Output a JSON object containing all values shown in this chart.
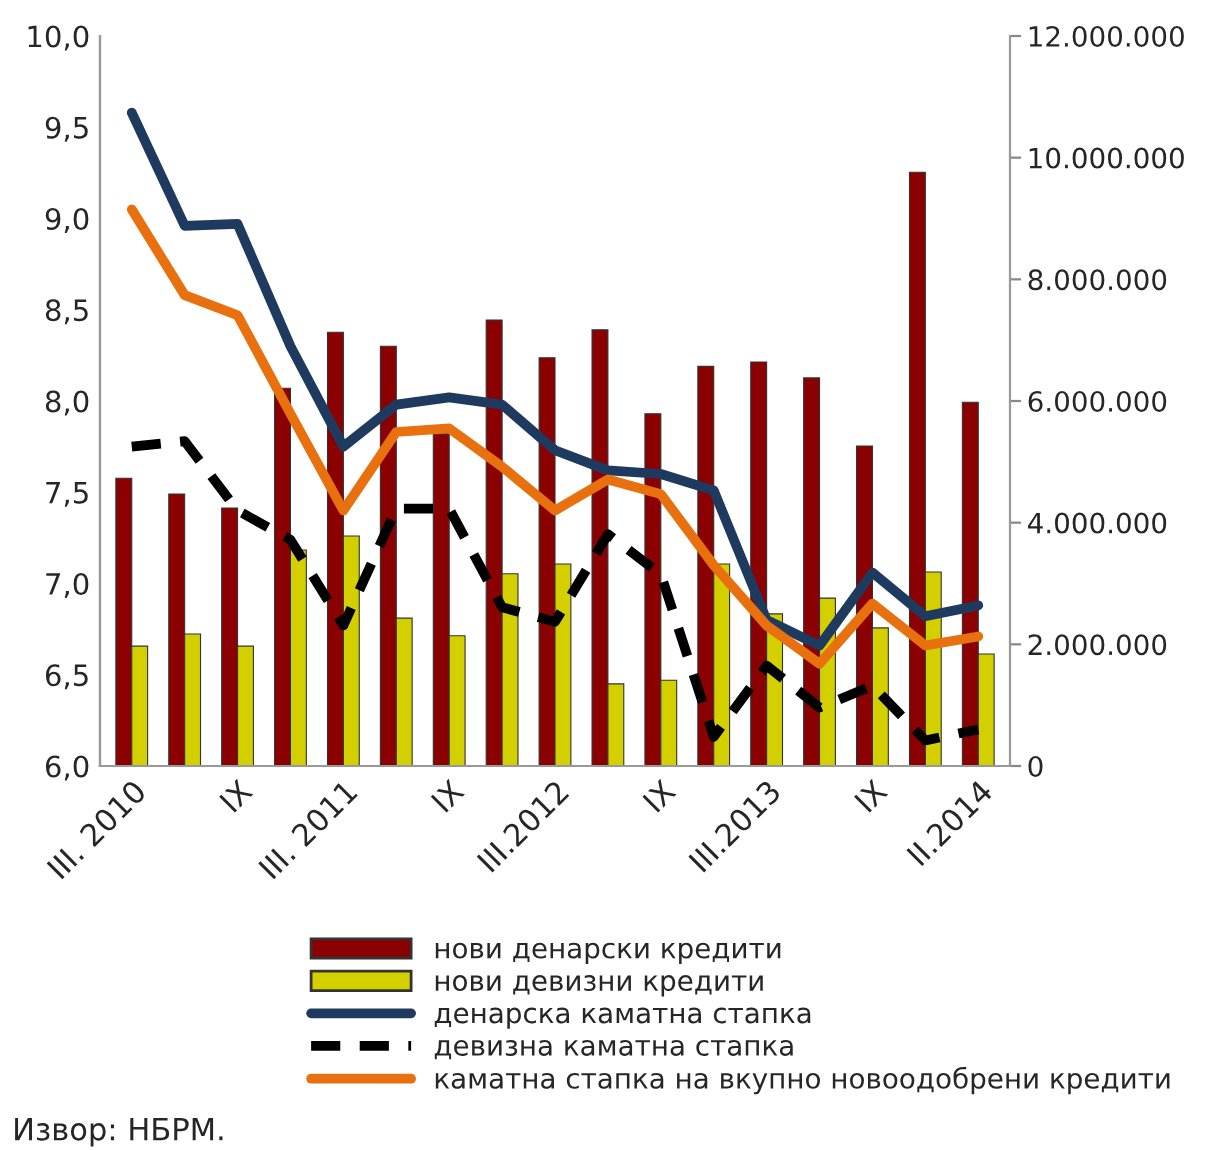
{
  "chart_data": {
    "type": "bar",
    "categories": [
      "III. 2010",
      null,
      "IX",
      null,
      "III. 2011",
      null,
      "IX",
      null,
      "III.2012",
      null,
      "IX",
      null,
      "III.2013",
      null,
      "IX",
      null,
      "II.2014"
    ],
    "series": [
      {
        "name": "нови денарски кредити",
        "axis": "y2",
        "color": "#8b0000",
        "values": [
          4730000,
          4470000,
          4240000,
          6210000,
          7130000,
          6900000,
          5460000,
          7330000,
          6710000,
          7170000,
          5790000,
          6570000,
          6640000,
          6380000,
          5260000,
          9760000,
          5980000
        ]
      },
      {
        "name": "нови девизни кредити",
        "axis": "y2",
        "color": "#d4d000",
        "values": [
          1970000,
          2170000,
          1970000,
          3550000,
          3780000,
          2430000,
          2140000,
          3160000,
          3320000,
          1350000,
          1410000,
          3320000,
          2500000,
          2760000,
          2270000,
          3190000,
          1840000
        ]
      },
      {
        "name": "денарска каматна стапка",
        "type": "line",
        "color": "#1f3a5f",
        "line_style": "solid",
        "values": [
          9.58,
          8.96,
          8.97,
          8.3,
          7.75,
          7.98,
          8.02,
          7.98,
          7.73,
          7.62,
          7.6,
          7.51,
          6.8,
          6.66,
          7.06,
          6.82,
          6.88
        ]
      },
      {
        "name": "девизна каматна стапка",
        "type": "line",
        "color": "#000000",
        "line_style": "dashed",
        "values": [
          7.75,
          7.78,
          7.4,
          7.24,
          6.77,
          7.41,
          7.41,
          6.87,
          6.79,
          7.27,
          7.05,
          6.16,
          6.55,
          6.32,
          6.44,
          6.14,
          6.2
        ]
      },
      {
        "name": "каматна стапка на вкупно новоодобрени кредити",
        "type": "line",
        "color": "#e8700f",
        "line_style": "solid",
        "values": [
          9.05,
          8.58,
          8.47,
          7.93,
          7.4,
          7.83,
          7.85,
          7.64,
          7.4,
          7.57,
          7.49,
          7.1,
          6.77,
          6.56,
          6.89,
          6.66,
          6.71
        ]
      }
    ],
    "ylim": [
      6.0,
      10.0
    ],
    "yticks": [
      {
        "value": 6.0,
        "label": "6,0"
      },
      {
        "value": 6.5,
        "label": "6,5"
      },
      {
        "value": 7.0,
        "label": "7,0"
      },
      {
        "value": 7.5,
        "label": "7,5"
      },
      {
        "value": 8.0,
        "label": "8,0"
      },
      {
        "value": 8.5,
        "label": "8,5"
      },
      {
        "value": 9.0,
        "label": "9,0"
      },
      {
        "value": 9.5,
        "label": "9,5"
      },
      {
        "value": 10.0,
        "label": "10,0"
      }
    ],
    "y2lim": [
      0,
      12000000
    ],
    "y2ticks": [
      0,
      {
        "value": 2000000,
        "label": "2.000.000"
      },
      {
        "value": 4000000,
        "label": "4.000.000"
      },
      {
        "value": 6000000,
        "label": "6.000.000"
      },
      {
        "value": 8000000,
        "label": "8.000.000"
      },
      {
        "value": 10000000,
        "label": "10.000.000"
      },
      {
        "value": 12000000,
        "label": "12.000.000"
      }
    ],
    "grid": false,
    "legend": "bottom",
    "annotations": [
      "Извор: НБРМ."
    ]
  }
}
